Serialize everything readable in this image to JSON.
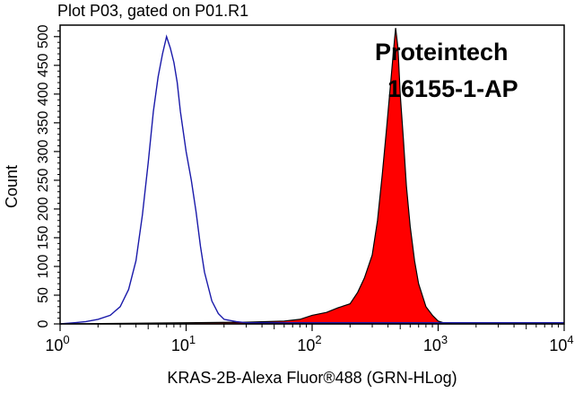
{
  "chart_data": {
    "type": "area",
    "title": "Plot P03, gated on P01.R1",
    "xlabel": "KRAS-2B-Alexa Fluor®488 (GRN-HLog)",
    "ylabel": "Count",
    "x_scale": "log",
    "xlim": [
      1,
      10000
    ],
    "ylim": [
      0,
      520
    ],
    "x_ticks": [
      1,
      10,
      100,
      1000,
      10000
    ],
    "x_tick_labels": [
      {
        "base": "10",
        "exp": "0"
      },
      {
        "base": "10",
        "exp": "1"
      },
      {
        "base": "10",
        "exp": "2"
      },
      {
        "base": "10",
        "exp": "3"
      },
      {
        "base": "10",
        "exp": "4"
      }
    ],
    "y_ticks": [
      0,
      50,
      100,
      150,
      200,
      250,
      300,
      350,
      400,
      450,
      500
    ],
    "y_tick_labels": [
      "0",
      "50",
      "100",
      "150",
      "200",
      "250",
      "300",
      "350",
      "400",
      "450",
      "500"
    ],
    "grid": false,
    "annotations": [
      "Proteintech",
      "16155-1-AP"
    ],
    "series": [
      {
        "color": "#1a1aaa",
        "fill": "none",
        "x": [
          1,
          1.3,
          1.6,
          2,
          2.5,
          3,
          3.5,
          4,
          4.5,
          5,
          5.5,
          6,
          6.5,
          7,
          7.5,
          8,
          8.5,
          9,
          10,
          11,
          12,
          13,
          14,
          16,
          18,
          20,
          25,
          30,
          40,
          60,
          100,
          300,
          1000,
          3000,
          10000
        ],
        "y": [
          0,
          2,
          4,
          8,
          15,
          30,
          60,
          110,
          190,
          280,
          370,
          430,
          470,
          500,
          480,
          455,
          420,
          370,
          300,
          250,
          195,
          135,
          90,
          40,
          18,
          8,
          4,
          2,
          2,
          2,
          2,
          2,
          2,
          2,
          2
        ]
      },
      {
        "color": "#ff0000",
        "fill": "#ff0000",
        "x": [
          1,
          10,
          30,
          60,
          80,
          100,
          130,
          160,
          200,
          230,
          260,
          300,
          330,
          360,
          390,
          420,
          440,
          460,
          480,
          500,
          530,
          560,
          600,
          650,
          700,
          800,
          900,
          1000,
          1100,
          1300,
          10000
        ],
        "y": [
          0,
          2,
          3,
          5,
          8,
          15,
          20,
          28,
          35,
          55,
          80,
          120,
          180,
          260,
          340,
          420,
          470,
          515,
          480,
          400,
          320,
          240,
          170,
          110,
          70,
          30,
          15,
          5,
          2,
          0,
          0
        ]
      }
    ]
  }
}
